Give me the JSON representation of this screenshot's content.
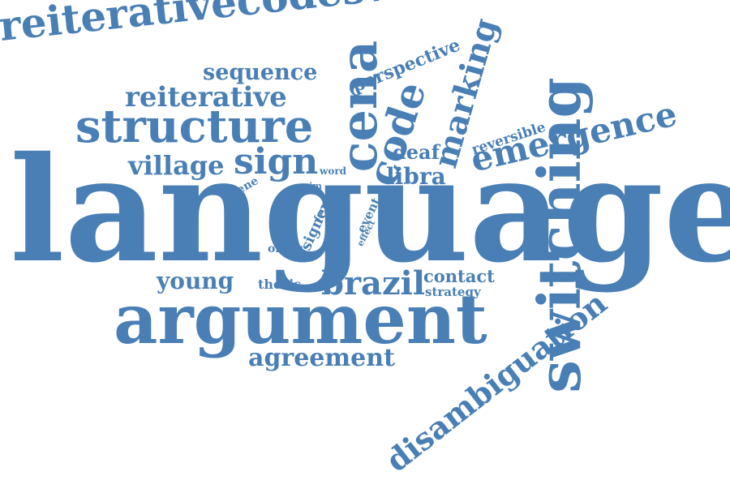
{
  "colors": {
    "word": "#4a7fb5",
    "background": "#ffffff"
  },
  "words": {
    "language": "language",
    "argument": "argument",
    "switching": "switching",
    "reiterativecodeswitches": "reiterativecodeswitches",
    "structure": "structure",
    "emergence": "emergence",
    "disambiguation": "disambiguation",
    "marking": "marking",
    "cena": "cena",
    "code": "code",
    "brazil": "brazil",
    "reiterative": "reiterative",
    "village": "village",
    "sign": "sign",
    "sequence": "sequence",
    "agreement": "agreement",
    "perspective": "perspective",
    "young": "young",
    "deaf": "deaf",
    "libra": "libra",
    "contact": "contact",
    "reversible": "reversible",
    "thesis": "thesis",
    "signer": "signer",
    "strategy": "strategy",
    "scene": "scene",
    "event": "event",
    "word": "word",
    "order": "order",
    "anim": "anim",
    "form": "form",
    "effect": "effect"
  }
}
